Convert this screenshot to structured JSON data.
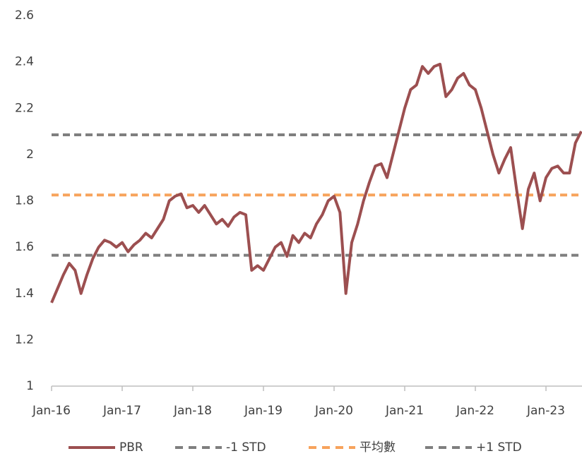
{
  "chart_data": {
    "type": "line",
    "categories": [
      "Jan-16",
      null,
      null,
      null,
      null,
      null,
      null,
      null,
      null,
      null,
      null,
      null,
      "Jan-17",
      null,
      null,
      null,
      null,
      null,
      null,
      null,
      null,
      null,
      null,
      null,
      "Jan-18",
      null,
      null,
      null,
      null,
      null,
      null,
      null,
      null,
      null,
      null,
      null,
      "Jan-19",
      null,
      null,
      null,
      null,
      null,
      null,
      null,
      null,
      null,
      null,
      null,
      "Jan-20",
      null,
      null,
      null,
      null,
      null,
      null,
      null,
      null,
      null,
      null,
      null,
      "Jan-21",
      null,
      null,
      null,
      null,
      null,
      null,
      null,
      null,
      null,
      null,
      null,
      "Jan-22",
      null,
      null,
      null,
      null,
      null,
      null,
      null,
      null,
      null,
      null,
      null,
      "Jan-23",
      null,
      null,
      null,
      null,
      null,
      null
    ],
    "series": [
      {
        "name": "PBR",
        "color": "#9c4f50",
        "values": [
          1.36,
          1.42,
          1.48,
          1.53,
          1.5,
          1.4,
          1.48,
          1.55,
          1.6,
          1.63,
          1.62,
          1.6,
          1.62,
          1.58,
          1.61,
          1.63,
          1.66,
          1.64,
          1.68,
          1.72,
          1.8,
          1.82,
          1.83,
          1.77,
          1.78,
          1.75,
          1.78,
          1.74,
          1.7,
          1.72,
          1.69,
          1.73,
          1.75,
          1.74,
          1.5,
          1.52,
          1.5,
          1.55,
          1.6,
          1.62,
          1.56,
          1.65,
          1.62,
          1.66,
          1.64,
          1.7,
          1.74,
          1.8,
          1.82,
          1.75,
          1.4,
          1.62,
          1.7,
          1.8,
          1.88,
          1.95,
          1.96,
          1.9,
          2.0,
          2.1,
          2.2,
          2.28,
          2.3,
          2.38,
          2.35,
          2.38,
          2.39,
          2.25,
          2.28,
          2.33,
          2.35,
          2.3,
          2.28,
          2.2,
          2.1,
          2.0,
          1.92,
          1.98,
          2.03,
          1.85,
          1.68,
          1.85,
          1.92,
          1.8,
          1.9,
          1.94,
          1.95,
          1.92,
          1.92,
          2.05,
          2.1
        ]
      }
    ],
    "reference_lines": [
      {
        "name": "-1 STD",
        "color": "#7f7f7f",
        "value": 1.565
      },
      {
        "name": "平均數",
        "color": "#f7a35c",
        "value": 1.825
      },
      {
        "name": "+1 STD",
        "color": "#7f7f7f",
        "value": 2.085
      }
    ],
    "ylim": [
      1,
      2.6
    ],
    "yticks": [
      1,
      1.2,
      1.4,
      1.6,
      1.8,
      2,
      2.2,
      2.4,
      2.6
    ]
  }
}
